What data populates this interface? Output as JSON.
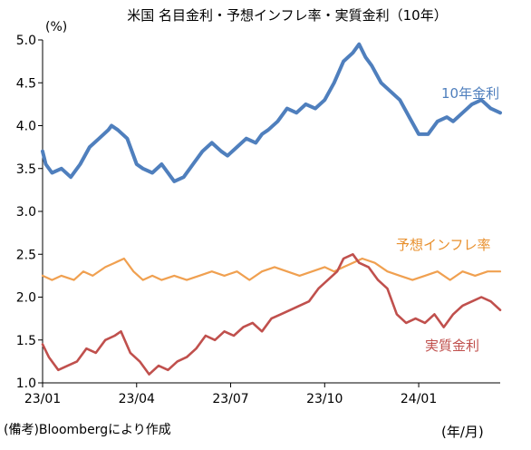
{
  "chart_data": {
    "type": "line",
    "title": "米国 名目金利・予想インフレ率・実質金利（10年）",
    "y_unit": "(%)",
    "xlabel": "(年/月)",
    "ylabel": "",
    "ylim": [
      1.0,
      5.0
    ],
    "yticks": [
      "1.0",
      "1.5",
      "2.0",
      "2.5",
      "3.0",
      "3.5",
      "4.0",
      "4.5",
      "5.0"
    ],
    "xlim": [
      0,
      14.6
    ],
    "xticks": [
      {
        "pos": 0,
        "label": "23/01"
      },
      {
        "pos": 3,
        "label": "23/04"
      },
      {
        "pos": 6,
        "label": "23/07"
      },
      {
        "pos": 9,
        "label": "23/10"
      },
      {
        "pos": 12,
        "label": "24/01"
      }
    ],
    "grid": false,
    "source": "(備考)Bloombergにより作成",
    "series": [
      {
        "name": "10年金利",
        "color": "#4f7fbd",
        "label_color": "#4f7fbd",
        "x": [
          0,
          0.1,
          0.3,
          0.6,
          0.9,
          1.2,
          1.5,
          1.8,
          2.1,
          2.2,
          2.4,
          2.7,
          3.0,
          3.2,
          3.5,
          3.8,
          4.2,
          4.5,
          4.8,
          5.1,
          5.4,
          5.7,
          5.9,
          6.2,
          6.5,
          6.8,
          7.0,
          7.2,
          7.5,
          7.8,
          8.1,
          8.4,
          8.7,
          9.0,
          9.3,
          9.6,
          9.9,
          10.1,
          10.3,
          10.5,
          10.8,
          11.1,
          11.4,
          11.7,
          12.0,
          12.3,
          12.6,
          12.9,
          13.1,
          13.4,
          13.7,
          14.0,
          14.3,
          14.6
        ],
        "y": [
          3.7,
          3.55,
          3.45,
          3.5,
          3.4,
          3.55,
          3.75,
          3.85,
          3.95,
          4.0,
          3.95,
          3.85,
          3.55,
          3.5,
          3.45,
          3.55,
          3.35,
          3.4,
          3.55,
          3.7,
          3.8,
          3.7,
          3.65,
          3.75,
          3.85,
          3.8,
          3.9,
          3.95,
          4.05,
          4.2,
          4.15,
          4.25,
          4.2,
          4.3,
          4.5,
          4.75,
          4.85,
          4.95,
          4.8,
          4.7,
          4.5,
          4.4,
          4.3,
          4.1,
          3.9,
          3.9,
          4.05,
          4.1,
          4.05,
          4.15,
          4.25,
          4.3,
          4.2,
          4.15
        ]
      },
      {
        "name": "予想インフレ率",
        "color": "#f0a050",
        "label_color": "#e8902e",
        "x": [
          0,
          0.3,
          0.6,
          1.0,
          1.3,
          1.6,
          2.0,
          2.3,
          2.6,
          2.9,
          3.2,
          3.5,
          3.8,
          4.2,
          4.6,
          5.0,
          5.4,
          5.8,
          6.2,
          6.6,
          7.0,
          7.4,
          7.8,
          8.2,
          8.6,
          9.0,
          9.3,
          9.6,
          9.9,
          10.2,
          10.6,
          11.0,
          11.4,
          11.8,
          12.2,
          12.6,
          13.0,
          13.4,
          13.8,
          14.2,
          14.6
        ],
        "y": [
          2.25,
          2.2,
          2.25,
          2.2,
          2.3,
          2.25,
          2.35,
          2.4,
          2.45,
          2.3,
          2.2,
          2.25,
          2.2,
          2.25,
          2.2,
          2.25,
          2.3,
          2.25,
          2.3,
          2.2,
          2.3,
          2.35,
          2.3,
          2.25,
          2.3,
          2.35,
          2.3,
          2.35,
          2.4,
          2.45,
          2.4,
          2.3,
          2.25,
          2.2,
          2.25,
          2.3,
          2.2,
          2.3,
          2.25,
          2.3,
          2.3
        ]
      },
      {
        "name": "実質金利",
        "color": "#c0504d",
        "label_color": "#c0504d",
        "x": [
          0,
          0.2,
          0.5,
          0.8,
          1.1,
          1.4,
          1.7,
          2.0,
          2.3,
          2.5,
          2.8,
          3.1,
          3.4,
          3.7,
          4.0,
          4.3,
          4.6,
          4.9,
          5.2,
          5.5,
          5.8,
          6.1,
          6.4,
          6.7,
          7.0,
          7.3,
          7.6,
          7.9,
          8.2,
          8.5,
          8.8,
          9.1,
          9.4,
          9.6,
          9.9,
          10.1,
          10.4,
          10.7,
          11.0,
          11.3,
          11.6,
          11.9,
          12.2,
          12.5,
          12.8,
          13.1,
          13.4,
          13.7,
          14.0,
          14.3,
          14.6
        ],
        "y": [
          1.45,
          1.3,
          1.15,
          1.2,
          1.25,
          1.4,
          1.35,
          1.5,
          1.55,
          1.6,
          1.35,
          1.25,
          1.1,
          1.2,
          1.15,
          1.25,
          1.3,
          1.4,
          1.55,
          1.5,
          1.6,
          1.55,
          1.65,
          1.7,
          1.6,
          1.75,
          1.8,
          1.85,
          1.9,
          1.95,
          2.1,
          2.2,
          2.3,
          2.45,
          2.5,
          2.4,
          2.35,
          2.2,
          2.1,
          1.8,
          1.7,
          1.75,
          1.7,
          1.8,
          1.65,
          1.8,
          1.9,
          1.95,
          2.0,
          1.95,
          1.85
        ]
      }
    ]
  }
}
